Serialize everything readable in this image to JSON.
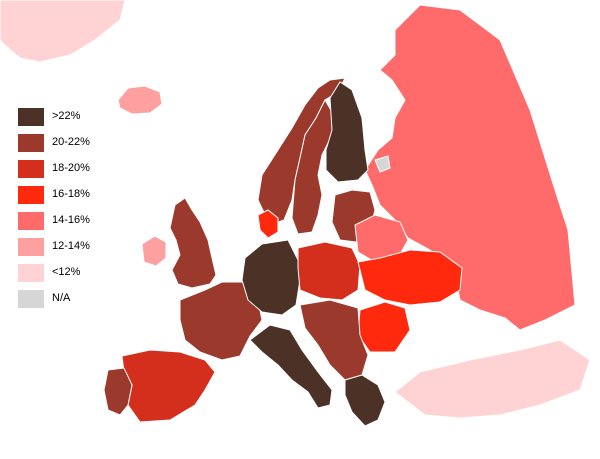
{
  "colors": {
    "sea": "#ffffff",
    "border": "#ffffff",
    "c_gt22": "#4b3126",
    "c_20_22": "#9b3a2c",
    "c_18_20": "#d42f1c",
    "c_16_18": "#ff2a0e",
    "c_14_16": "#ff6a6a",
    "c_12_14": "#ffa0a0",
    "c_lt12": "#ffd3d3",
    "c_na": "#d6d6d6"
  },
  "legend": {
    "items": [
      {
        "label": ">22%",
        "color": "#4b3126"
      },
      {
        "label": "20-22%",
        "color": "#9b3a2c"
      },
      {
        "label": "18-20%",
        "color": "#d42f1c"
      },
      {
        "label": "16-18%",
        "color": "#ff2a0e"
      },
      {
        "label": "14-16%",
        "color": "#ff6a6a"
      },
      {
        "label": "12-14%",
        "color": "#ffa0a0"
      },
      {
        "label": "<12%",
        "color": "#ffd3d3"
      },
      {
        "label": "N/A",
        "color": "#d6d6d6"
      }
    ]
  },
  "regions": [
    {
      "name": "greenland",
      "category": "c_lt12"
    },
    {
      "name": "iceland",
      "category": "c_12_14"
    },
    {
      "name": "norway",
      "category": "c_20_22"
    },
    {
      "name": "sweden",
      "category": "c_20_22"
    },
    {
      "name": "finland",
      "category": "c_gt22"
    },
    {
      "name": "russia",
      "category": "c_14_16"
    },
    {
      "name": "denmark",
      "category": "c_16_18"
    },
    {
      "name": "uk",
      "category": "c_20_22"
    },
    {
      "name": "ireland",
      "category": "c_12_14"
    },
    {
      "name": "france",
      "category": "c_20_22"
    },
    {
      "name": "spain",
      "category": "c_18_20"
    },
    {
      "name": "portugal",
      "category": "c_20_22"
    },
    {
      "name": "germany",
      "category": "c_gt22"
    },
    {
      "name": "italy",
      "category": "c_gt22"
    },
    {
      "name": "poland",
      "category": "c_18_20"
    },
    {
      "name": "ukraine",
      "category": "c_16_18"
    },
    {
      "name": "belarus",
      "category": "c_14_16"
    },
    {
      "name": "baltics",
      "category": "c_20_22"
    },
    {
      "name": "romania",
      "category": "c_16_18"
    },
    {
      "name": "balkans",
      "category": "c_20_22"
    },
    {
      "name": "greece",
      "category": "c_gt22"
    },
    {
      "name": "turkey",
      "category": "c_lt12"
    },
    {
      "name": "kaliningrad",
      "category": "c_na"
    }
  ]
}
